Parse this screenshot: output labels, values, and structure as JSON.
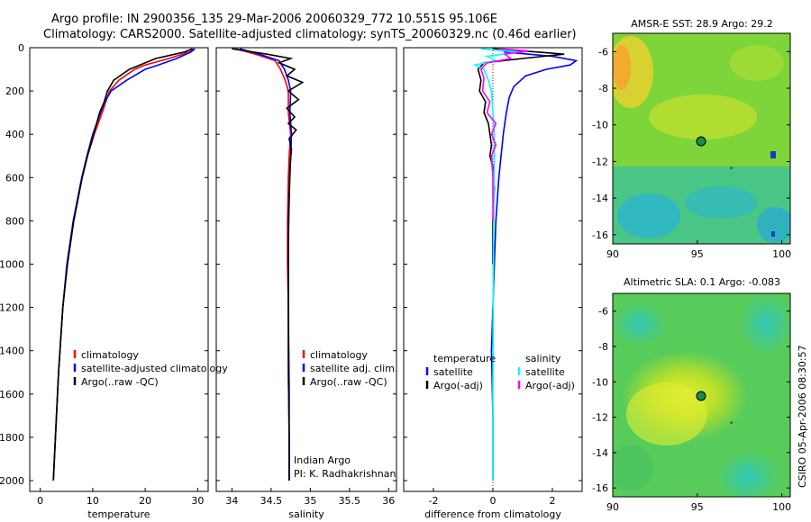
{
  "title": {
    "line1": "Argo profile: IN 2900356_135 29-Mar-2006 20060329_772 10.551S 95.106E",
    "line2": "Climatology: CARS2000. Satellite-adjusted climatology: synTS_20060329.nc (0.46d earlier)"
  },
  "depth_axis": {
    "ticks": [
      0,
      200,
      400,
      600,
      800,
      1000,
      1200,
      1400,
      1600,
      1800,
      2000
    ],
    "range": [
      0,
      2050
    ]
  },
  "colors": {
    "climatology": "#ff0000",
    "satellite": "#0000ff",
    "argo": "#000000",
    "cyan": "#00ffff",
    "magenta": "#ff00ff"
  },
  "chart_data": [
    {
      "type": "line",
      "name": "temperature-panel",
      "xlabel": "temperature",
      "xlim": [
        -2,
        32
      ],
      "xticks": [
        0,
        10,
        20,
        30
      ],
      "ylim": [
        2050,
        0
      ],
      "legend": [
        "climatology",
        "satellite-adjusted climatology",
        "Argo(..raw -QC)"
      ],
      "series": [
        {
          "name": "climatology",
          "color": "#ff0000",
          "depth": [
            5,
            20,
            50,
            80,
            100,
            150,
            200,
            250,
            300,
            400,
            500,
            600,
            800,
            1000,
            1200,
            1500,
            1800,
            2000
          ],
          "values": [
            29.2,
            28.5,
            24.5,
            20.0,
            18.0,
            15.0,
            13.2,
            12.5,
            11.8,
            10.3,
            9.0,
            8.0,
            6.3,
            5.1,
            4.3,
            3.5,
            2.9,
            2.5
          ]
        },
        {
          "name": "satellite-adjusted",
          "color": "#0000ff",
          "depth": [
            5,
            20,
            50,
            80,
            100,
            150,
            200,
            250,
            300,
            400,
            500,
            600,
            800,
            1000,
            1200,
            1500,
            1800,
            2000
          ],
          "values": [
            29.5,
            28.7,
            26.0,
            22.5,
            20.0,
            16.5,
            13.5,
            12.3,
            11.5,
            10.0,
            8.9,
            7.9,
            6.3,
            5.1,
            4.3,
            3.5,
            2.9,
            2.5
          ]
        },
        {
          "name": "Argo",
          "color": "#000000",
          "depth": [
            5,
            20,
            50,
            80,
            100,
            150,
            200,
            250,
            300,
            400,
            500,
            600,
            800,
            1000,
            1200,
            1500,
            1800,
            2000
          ],
          "values": [
            29.0,
            27.5,
            22.0,
            19.0,
            17.0,
            14.0,
            12.8,
            12.2,
            11.3,
            10.2,
            9.0,
            8.0,
            6.4,
            5.2,
            4.3,
            3.5,
            2.9,
            2.5
          ]
        }
      ]
    },
    {
      "type": "line",
      "name": "salinity-panel",
      "xlabel": "salinity",
      "xlim": [
        33.8,
        36.1
      ],
      "xticks": [
        34,
        34.5,
        35,
        35.5,
        36
      ],
      "xticklabels": [
        "34",
        "34.5",
        "35",
        "35.5",
        "36"
      ],
      "ylim": [
        2050,
        0
      ],
      "legend": [
        "climatology",
        "satellite adj. clim.",
        "Argo(..raw -QC)"
      ],
      "annotation": [
        "Indian Argo",
        "PI: K. Radhakrishnan"
      ],
      "series": [
        {
          "name": "climatology",
          "color": "#ff0000",
          "depth": [
            5,
            30,
            60,
            100,
            150,
            200,
            300,
            400,
            500,
            600,
            800,
            1000,
            1200,
            1500,
            1800,
            2000
          ],
          "values": [
            34.05,
            34.3,
            34.55,
            34.62,
            34.68,
            34.72,
            34.72,
            34.75,
            34.73,
            34.72,
            34.71,
            34.71,
            34.72,
            34.72,
            34.73,
            34.73
          ]
        },
        {
          "name": "satellite-adjusted",
          "color": "#0000ff",
          "depth": [
            5,
            30,
            60,
            100,
            150,
            200,
            300,
            400,
            500,
            600,
            800,
            1000,
            1200,
            1500,
            1800,
            2000
          ],
          "values": [
            34.1,
            34.35,
            34.6,
            34.67,
            34.72,
            34.75,
            34.74,
            34.76,
            34.75,
            34.74,
            34.72,
            34.72,
            34.72,
            34.72,
            34.73,
            34.73
          ]
        },
        {
          "name": "Argo",
          "color": "#000000",
          "depth": [
            5,
            30,
            50,
            70,
            100,
            130,
            160,
            200,
            240,
            280,
            320,
            350,
            380,
            420,
            470,
            550,
            700,
            900,
            1200,
            1600,
            2000
          ],
          "values": [
            34.0,
            34.45,
            34.75,
            34.6,
            34.8,
            34.7,
            34.9,
            34.72,
            34.85,
            34.7,
            34.8,
            34.72,
            34.82,
            34.73,
            34.76,
            34.74,
            34.73,
            34.72,
            34.72,
            34.73,
            34.73
          ]
        }
      ]
    },
    {
      "type": "line",
      "name": "difference-panel",
      "xlabel": "difference from climatology",
      "xlim": [
        -3,
        3
      ],
      "xticks": [
        -2,
        0,
        2
      ],
      "ylim": [
        2050,
        0
      ],
      "legend": [
        "temperature",
        "satellite",
        "Argo(-adj)",
        "salinity",
        "satellite",
        "Argo(-adj)"
      ],
      "series": [
        {
          "name": "temperature satellite",
          "color": "#0000ff",
          "depth": [
            5,
            20,
            40,
            60,
            80,
            100,
            130,
            180,
            230,
            300,
            400,
            600,
            800,
            1000,
            1200,
            1400,
            1700,
            2000
          ],
          "values": [
            0.3,
            0.4,
            2.0,
            2.8,
            2.6,
            1.8,
            1.1,
            0.7,
            0.55,
            0.45,
            0.35,
            0.2,
            0.1,
            0.05,
            0.0,
            -0.05,
            0.0,
            0.0
          ]
        },
        {
          "name": "temperature Argo(-adj)",
          "color": "#000000",
          "depth": [
            5,
            20,
            30,
            50,
            70,
            100,
            150,
            200,
            250,
            300,
            350,
            400,
            450,
            500,
            550,
            650,
            800,
            1000
          ],
          "values": [
            0.0,
            1.5,
            2.4,
            1.0,
            -0.3,
            -0.5,
            -0.4,
            -0.45,
            -0.25,
            -0.3,
            -0.15,
            -0.1,
            -0.05,
            -0.1,
            0.0,
            0.05,
            0.0,
            0.0
          ]
        },
        {
          "name": "salinity satellite",
          "color": "#00ffff",
          "depth": [
            5,
            20,
            40,
            60,
            80,
            100,
            150,
            200,
            300,
            400,
            500,
            700,
            900,
            1200,
            1600,
            2000
          ],
          "values": [
            -0.4,
            0.9,
            -0.2,
            0.1,
            -0.6,
            -0.3,
            -0.15,
            -0.05,
            0.0,
            0.05,
            0.05,
            0.03,
            0.02,
            0.01,
            0.0,
            0.0
          ]
        },
        {
          "name": "salinity Argo(-adj)",
          "color": "#ff00ff",
          "depth": [
            5,
            15,
            30,
            50,
            70,
            100,
            140,
            200,
            250,
            300,
            350,
            400,
            450,
            500,
            600,
            800
          ],
          "values": [
            0.2,
            1.2,
            0.4,
            0.6,
            -0.2,
            -0.4,
            -0.3,
            -0.35,
            -0.1,
            -0.2,
            0.1,
            -0.05,
            0.1,
            -0.05,
            0.0,
            0.0
          ]
        }
      ]
    }
  ],
  "maps": [
    {
      "name": "sst-map",
      "title": "AMSR-E SST: 28.9 Argo: 29.2",
      "xticks": [
        90,
        95,
        100
      ],
      "yticks": [
        -6,
        -8,
        -10,
        -12,
        -14,
        -16
      ],
      "lon_range": [
        90,
        100.5
      ],
      "lat_range": [
        -16.5,
        -5
      ],
      "profile_lon": 95.106,
      "profile_lat": -10.551
    },
    {
      "name": "sla-map",
      "title": "Altimetric SLA: 0.1 Argo: -0.083",
      "xticks": [
        90,
        95,
        100
      ],
      "yticks": [
        -6,
        -8,
        -10,
        -12,
        -14,
        -16
      ],
      "lon_range": [
        90,
        100.5
      ],
      "lat_range": [
        -16.5,
        -5
      ],
      "profile_lon": 95.106,
      "profile_lat": -10.551
    }
  ],
  "side_label": "CSIRO 05-Apr-2006 08:30:57"
}
